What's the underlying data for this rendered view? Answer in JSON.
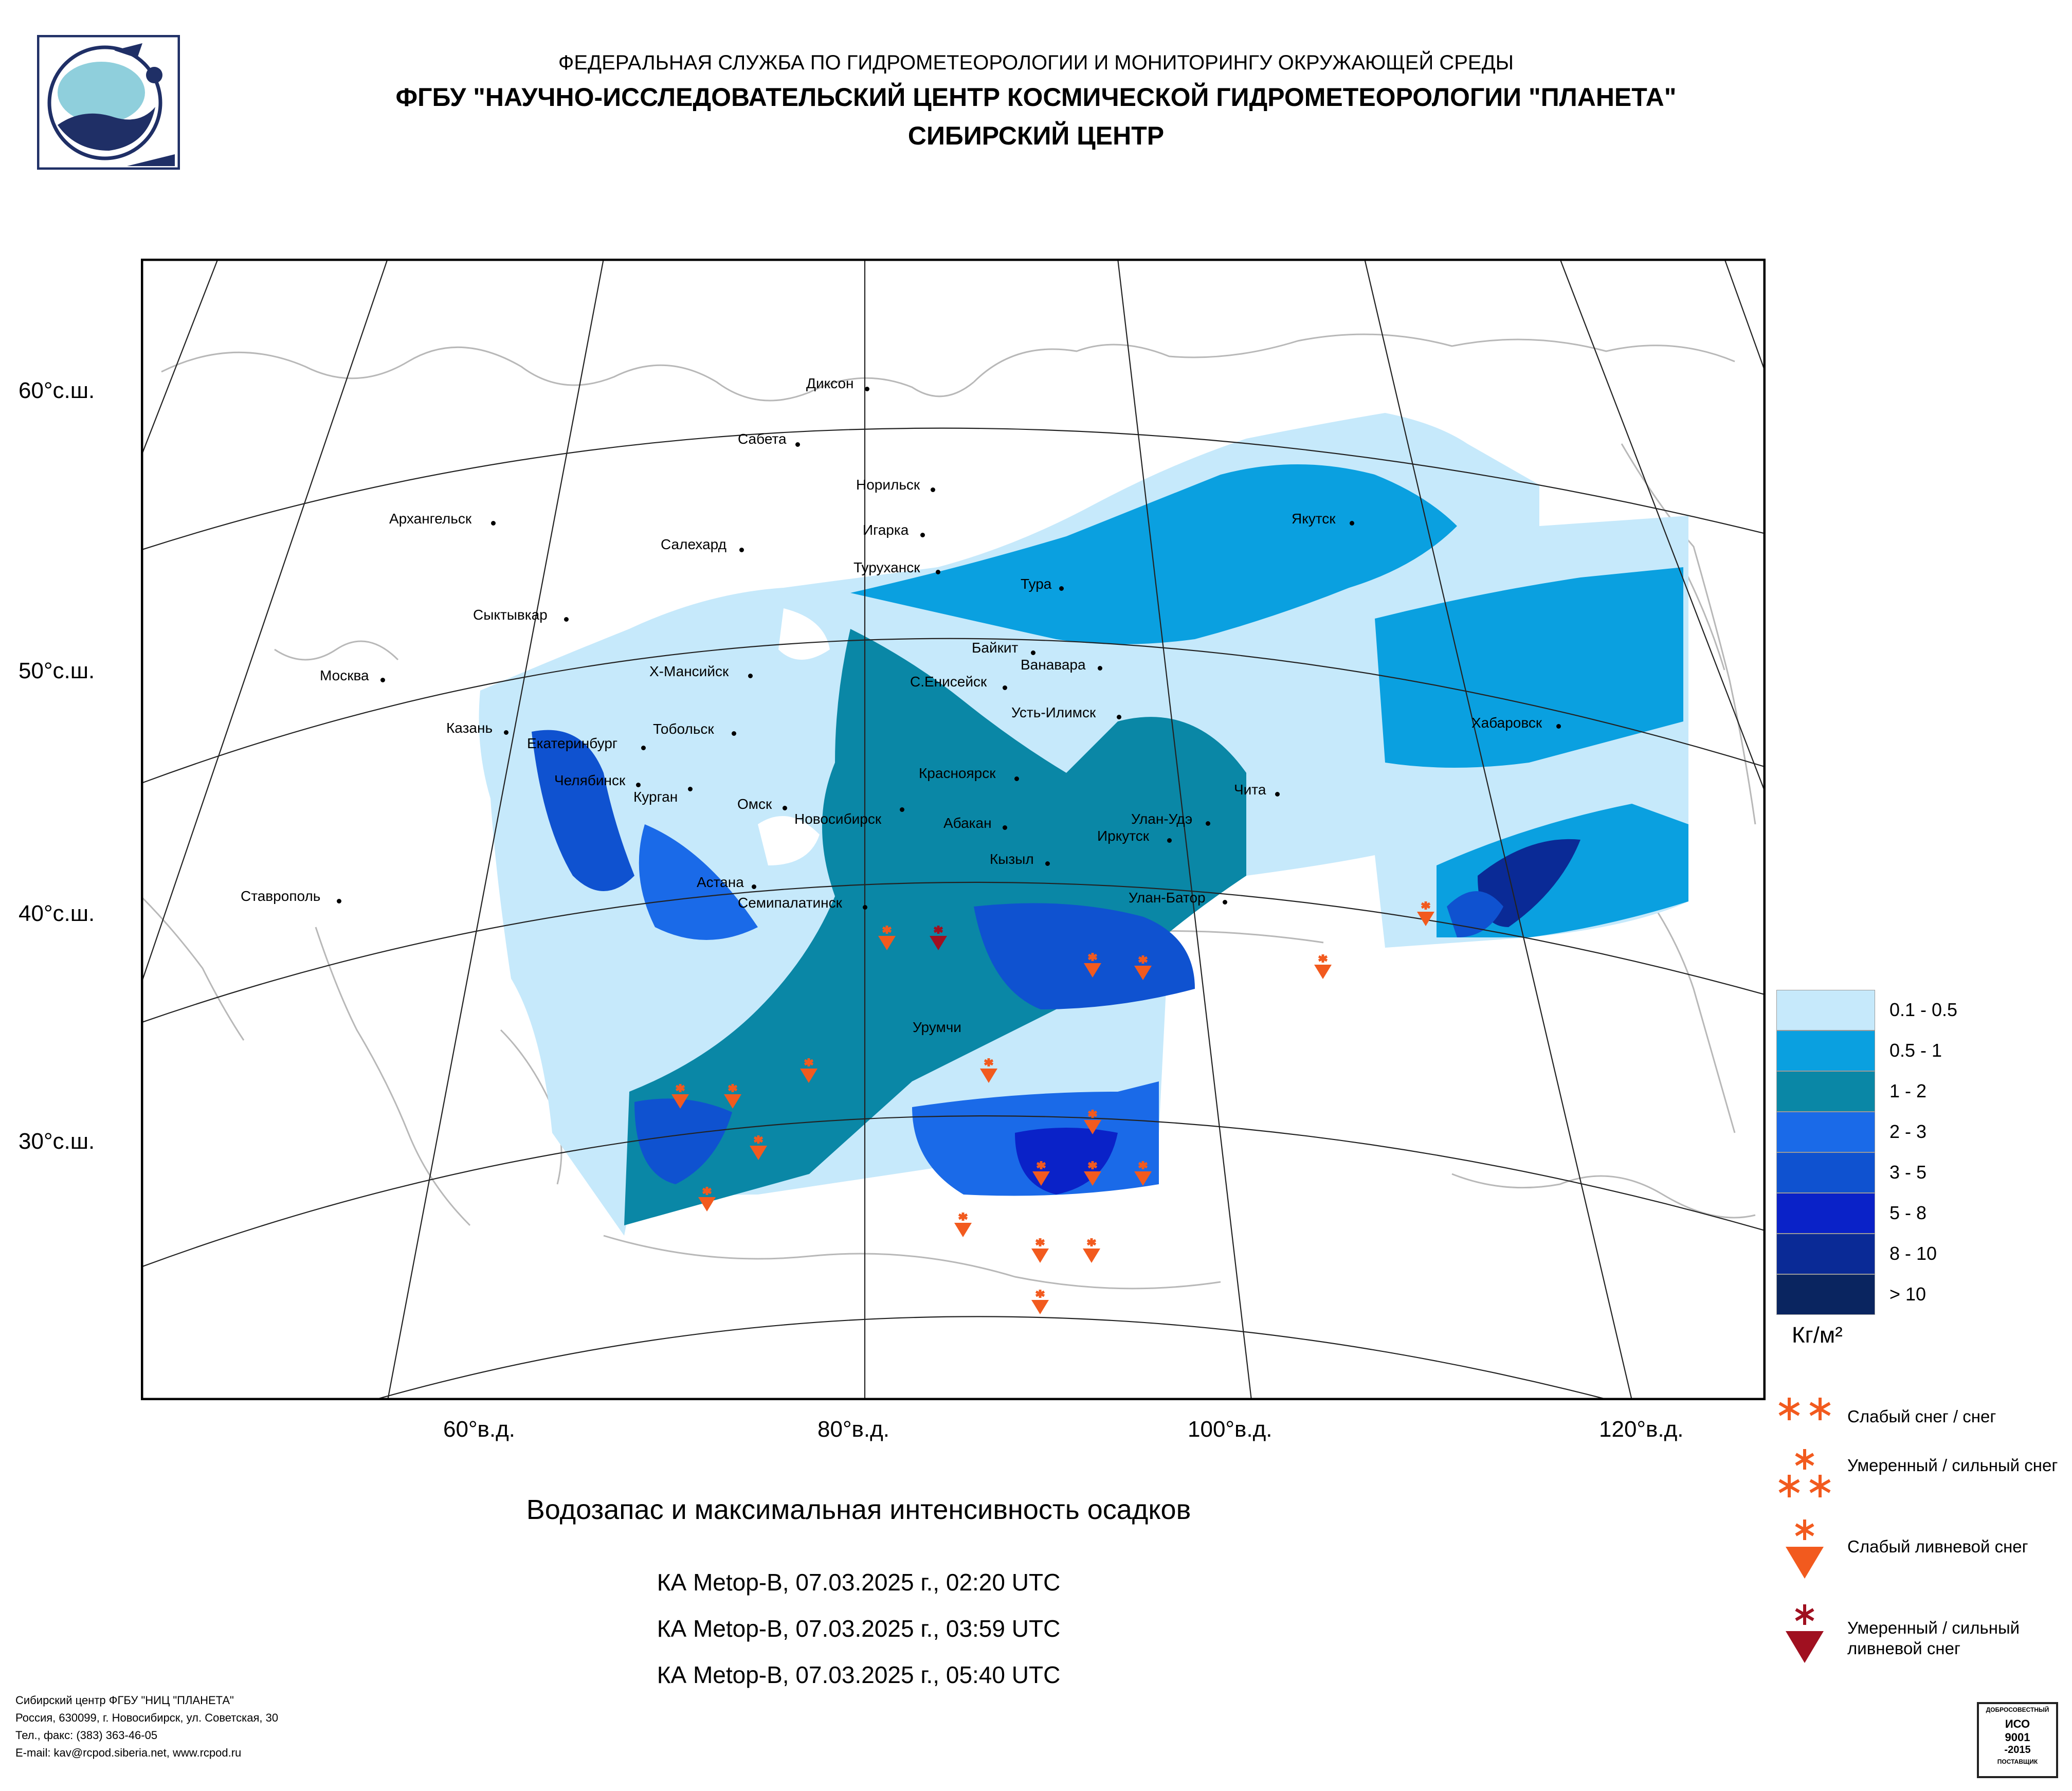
{
  "header": {
    "line1": "ФЕДЕРАЛЬНАЯ СЛУЖБА ПО ГИДРОМЕТЕОРОЛОГИИ И МОНИТОРИНГУ ОКРУЖАЮЩЕЙ СРЕДЫ",
    "line2": "ФГБУ \"НАУЧНО-ИССЛЕДОВАТЕЛЬСКИЙ ЦЕНТР КОСМИЧЕСКОЙ ГИДРОМЕТЕОРОЛОГИИ \"ПЛАНЕТА\"",
    "line3": "СИБИРСКИЙ ЦЕНТР"
  },
  "map": {
    "lat_labels": [
      "60°с.ш.",
      "50°с.ш.",
      "40°с.ш.",
      "30°с.ш."
    ],
    "lon_labels": [
      "60°в.д.",
      "80°в.д.",
      "100°в.д.",
      "120°в.д."
    ],
    "cities": [
      "Диксон",
      "Сабета",
      "Норильск",
      "Игарка",
      "Туруханск",
      "Салехард",
      "Архангельск",
      "Сыктывкар",
      "Якутск",
      "Тура",
      "Байкит",
      "Ванавара",
      "С.Енисейск",
      "Х-Мансийск",
      "Москва",
      "Казань",
      "Екатеринбург",
      "Тобольск",
      "Челябинск",
      "Курган",
      "Омск",
      "Новосибирск",
      "Красноярск",
      "Усть-Илимск",
      "Хабаровск",
      "Чита",
      "Улан-Удэ",
      "Иркутск",
      "Абакан",
      "Кызыл",
      "Астана",
      "Семипалатинск",
      "Улан-Батор",
      "Ставрополь",
      "Урумчи"
    ]
  },
  "legend": {
    "colors": [
      "#c6e9fb",
      "#0aa0e0",
      "#0a87a6",
      "#1a6ae8",
      "#0f52d0",
      "#0a22c8",
      "#0a2a96",
      "#0a2560"
    ],
    "ranges": [
      "0.1 - 0.5",
      "0.5 - 1",
      "1 - 2",
      "2 - 3",
      "3 - 5",
      "5 - 8",
      "8 - 10",
      "> 10"
    ],
    "unit": "Кг/м²",
    "symbols": [
      {
        "icon": "snow-light-icon",
        "label": "Слабый снег / снег"
      },
      {
        "icon": "snow-heavy-icon",
        "label": "Умеренный / сильный снег"
      },
      {
        "icon": "shower-snow-light-icon",
        "label": "Слабый ливневой снег"
      },
      {
        "icon": "shower-snow-heavy-icon",
        "label": "Умеренный / сильный ливневой снег"
      }
    ],
    "symbol_colors": {
      "light": "#f25a1e",
      "heavy": "#a01020"
    }
  },
  "title": "Водозапас и максимальная интенсивность осадков",
  "passes": [
    "КА Metop-B, 07.03.2025 г., 02:20 UTC",
    "КА Metop-B, 07.03.2025 г., 03:59 UTC",
    "КА Metop-B, 07.03.2025 г., 05:40 UTC"
  ],
  "footer": {
    "line1": "Сибирский центр ФГБУ \"НИЦ \"ПЛАНЕТА\"",
    "line2": "Россия, 630099, г. Новосибирск, ул. Советская, 30",
    "line3": "Тел., факс: (383) 363-46-05",
    "line4": "E-mail: kav@rcpod.siberia.net, www.rcpod.ru"
  },
  "cert": {
    "line1": "ДОБРОСОВЕСТНЫЙ",
    "line2": "ИСО",
    "line3": "9001",
    "line4": "-2015",
    "line5": "ПОСТАВЩИК"
  }
}
